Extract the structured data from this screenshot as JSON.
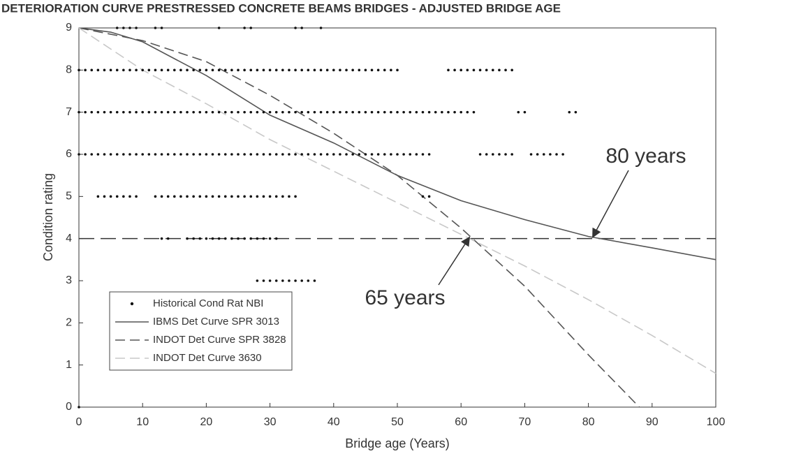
{
  "chart_data": {
    "type": "line",
    "title": "DETERIORATION CURVE PRESTRESSED CONCRETE BEAMS BRIDGES - ADJUSTED BRIDGE AGE",
    "x_label": "Bridge age (Years)",
    "y_label": "Condition rating",
    "xlim": [
      0,
      100
    ],
    "xticks": [
      0,
      10,
      20,
      30,
      40,
      50,
      60,
      70,
      80,
      90,
      100
    ],
    "ylim": [
      0,
      9
    ],
    "yticks": [
      0,
      1,
      2,
      3,
      4,
      5,
      6,
      7,
      8,
      9
    ],
    "grid": false,
    "legend": "lower left",
    "threshold": 4,
    "series": [
      {
        "name": "Historical Cond Rat NBI",
        "type": "scatter",
        "color": "#111111",
        "rows": [
          {
            "y": 9,
            "x": [
              6,
              7,
              8,
              9,
              12,
              13,
              22,
              26,
              27,
              34,
              35,
              38
            ]
          },
          {
            "y": 8,
            "x": [
              0,
              1,
              2,
              3,
              4,
              5,
              6,
              7,
              8,
              9,
              10,
              11,
              12,
              13,
              14,
              15,
              16,
              17,
              18,
              19,
              20,
              21,
              22,
              23,
              24,
              25,
              26,
              27,
              28,
              29,
              30,
              31,
              32,
              33,
              34,
              35,
              36,
              37,
              38,
              39,
              40,
              41,
              42,
              43,
              44,
              45,
              46,
              47,
              48,
              49,
              50,
              58,
              59,
              60,
              61,
              62,
              63,
              64,
              65,
              66,
              67,
              68
            ]
          },
          {
            "y": 7,
            "x": [
              0,
              1,
              2,
              3,
              4,
              5,
              6,
              7,
              8,
              9,
              10,
              11,
              12,
              13,
              14,
              15,
              16,
              17,
              18,
              19,
              20,
              21,
              22,
              23,
              24,
              25,
              26,
              27,
              28,
              29,
              30,
              31,
              32,
              33,
              34,
              35,
              36,
              37,
              38,
              39,
              40,
              41,
              42,
              43,
              44,
              45,
              46,
              47,
              48,
              49,
              50,
              51,
              52,
              53,
              54,
              55,
              56,
              57,
              58,
              59,
              60,
              61,
              62,
              69,
              70,
              77,
              78
            ]
          },
          {
            "y": 6,
            "x": [
              0,
              1,
              2,
              3,
              4,
              5,
              6,
              7,
              8,
              9,
              10,
              11,
              12,
              13,
              14,
              15,
              16,
              17,
              18,
              19,
              20,
              21,
              22,
              23,
              24,
              25,
              26,
              27,
              28,
              29,
              30,
              31,
              32,
              33,
              34,
              35,
              36,
              37,
              38,
              39,
              40,
              41,
              42,
              43,
              44,
              45,
              46,
              47,
              48,
              49,
              50,
              51,
              52,
              53,
              54,
              55,
              63,
              64,
              65,
              66,
              67,
              68,
              71,
              72,
              73,
              74,
              75,
              76
            ]
          },
          {
            "y": 5,
            "x": [
              3,
              4,
              5,
              6,
              7,
              8,
              9,
              12,
              13,
              14,
              15,
              16,
              17,
              18,
              19,
              20,
              21,
              22,
              23,
              24,
              25,
              26,
              27,
              28,
              29,
              30,
              31,
              32,
              33,
              34,
              54,
              55
            ]
          },
          {
            "y": 4,
            "x": [
              13,
              14,
              17,
              18,
              19,
              20,
              21,
              22,
              23,
              24,
              25,
              26,
              27,
              28,
              29,
              30,
              31
            ]
          },
          {
            "y": 3,
            "x": [
              28,
              29,
              30,
              31,
              32,
              33,
              34,
              35,
              36,
              37
            ]
          },
          {
            "y": 0,
            "x": [
              0
            ]
          }
        ]
      },
      {
        "name": "IBMS Det Curve SPR 3013",
        "type": "line",
        "color": "#555555",
        "line_style": "solid",
        "x": [
          0,
          5,
          10,
          20,
          30,
          40,
          50,
          60,
          70,
          80,
          90,
          100
        ],
        "values": [
          9,
          8.9,
          8.67,
          7.87,
          6.93,
          6.27,
          5.5,
          4.9,
          4.45,
          4.05,
          3.78,
          3.5
        ]
      },
      {
        "name": "INDOT Det Curve SPR 3828",
        "type": "line",
        "color": "#555555",
        "line_style": "dashed",
        "x": [
          0,
          10,
          20,
          30,
          40,
          50,
          60,
          70,
          80,
          88
        ],
        "values": [
          9,
          8.7,
          8.2,
          7.4,
          6.5,
          5.5,
          4.25,
          2.87,
          1.24,
          0
        ]
      },
      {
        "name": "INDOT Det Curve 3630",
        "type": "line",
        "color": "#c8c8c8",
        "line_style": "dashed",
        "x": [
          0,
          10,
          20,
          30,
          40,
          50,
          60,
          70,
          80,
          90,
          100
        ],
        "values": [
          9,
          8.0,
          7.2,
          6.35,
          5.6,
          4.85,
          4.1,
          3.35,
          2.55,
          1.7,
          0.8
        ]
      }
    ],
    "annotations": [
      {
        "text": "80 years",
        "x": 81,
        "y": 4
      },
      {
        "text": "65 years",
        "x": 61,
        "y": 4
      }
    ]
  }
}
